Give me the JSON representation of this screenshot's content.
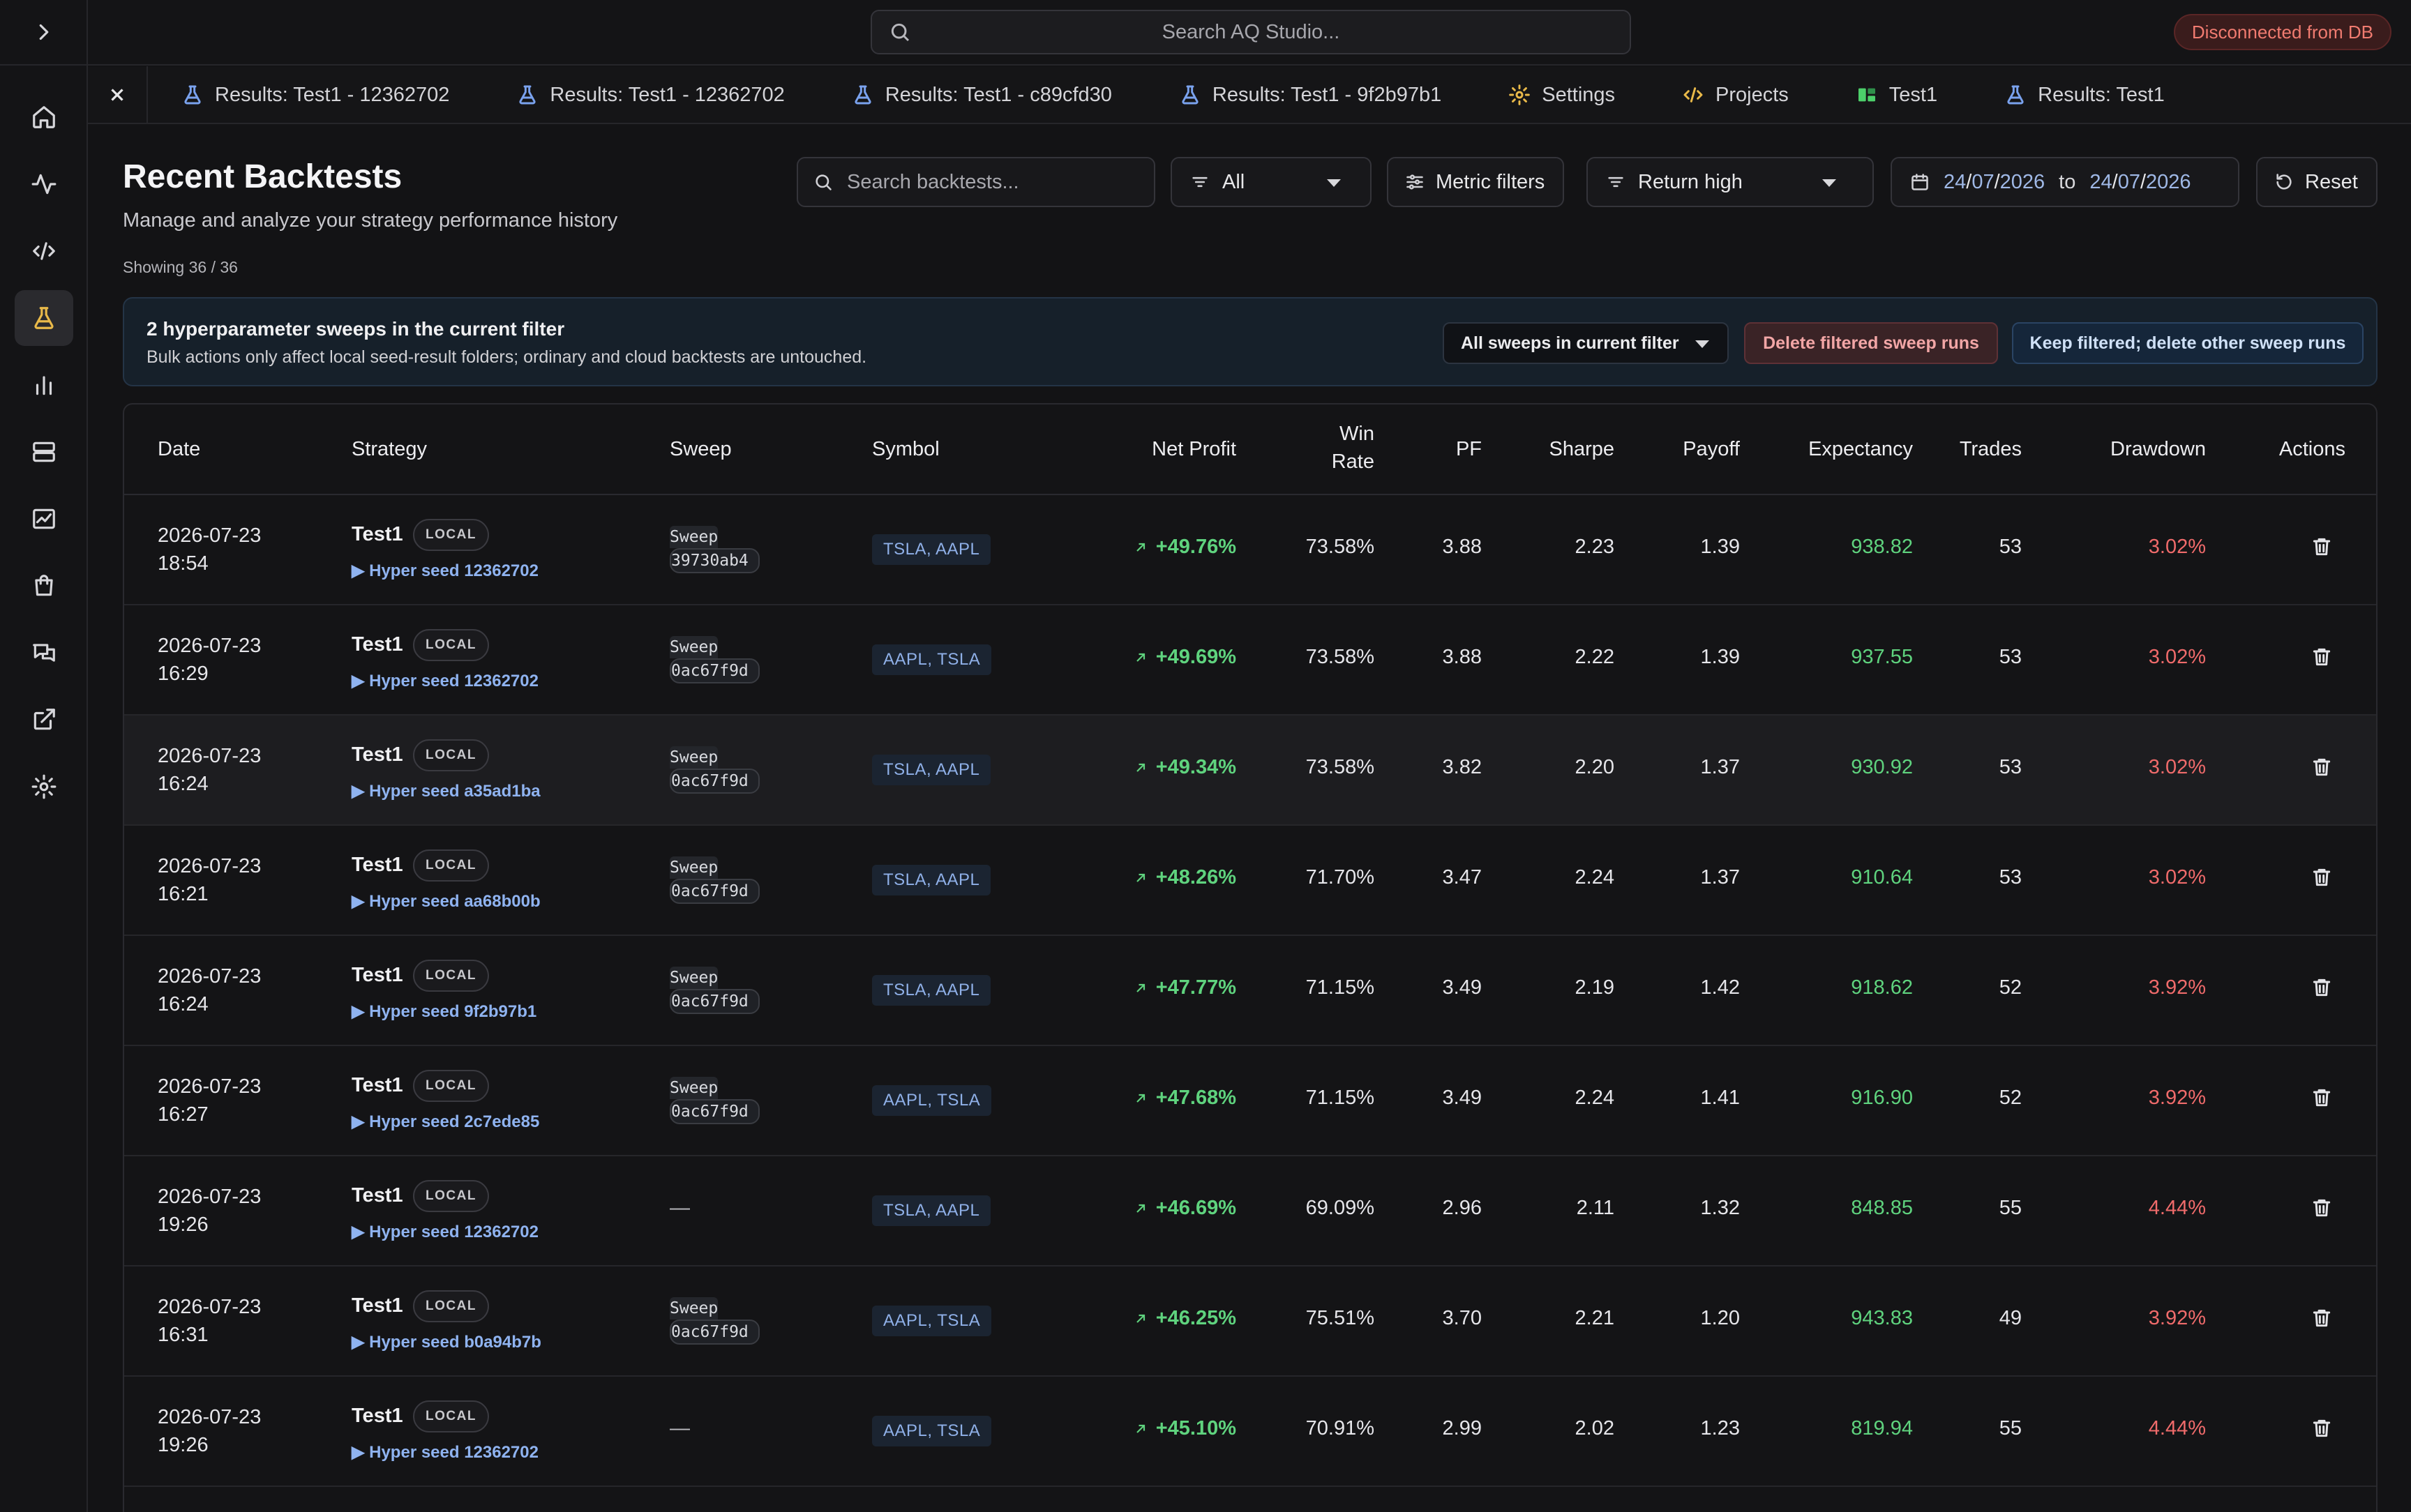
{
  "app": {
    "search_placeholder": "Search AQ Studio...",
    "db_status": "Disconnected from DB",
    "colors": {
      "accent": "#e9b949",
      "positive": "#5fd37e",
      "negative": "#f06b6b",
      "link": "#8fb3f0",
      "status_error": "#f07b70"
    }
  },
  "rail": {
    "icons": [
      "chevron-right-icon",
      "home-icon",
      "activity-icon",
      "code-icon",
      "flask-icon",
      "bar-chart-icon",
      "server-icon",
      "line-chart-icon",
      "shopping-bag-icon",
      "chat-icon",
      "external-link-icon",
      "gear-icon"
    ],
    "active": "flask-icon"
  },
  "tabs": [
    {
      "label": "Results: Test1 - 12362702",
      "icon": "flask-icon"
    },
    {
      "label": "Results: Test1 - 12362702",
      "icon": "flask-icon"
    },
    {
      "label": "Results: Test1 - c89cfd30",
      "icon": "flask-icon"
    },
    {
      "label": "Results: Test1 - 9f2b97b1",
      "icon": "flask-icon"
    },
    {
      "label": "Settings",
      "icon": "gear-icon"
    },
    {
      "label": "Projects",
      "icon": "code-icon"
    },
    {
      "label": "Test1",
      "icon": "strategy-icon"
    },
    {
      "label": "Results: Test1",
      "icon": "flask-icon"
    }
  ],
  "page": {
    "title": "Recent Backtests",
    "subtitle": "Manage and analyze your strategy performance history",
    "showing": "Showing 36 / 36"
  },
  "toolbar": {
    "search_placeholder": "Search backtests...",
    "type_filter": "All",
    "metric_filters": "Metric filters",
    "sort": "Return high",
    "date_from": {
      "dd": "24",
      "mm": "07",
      "yyyy": "2026"
    },
    "date_to": {
      "dd": "24",
      "mm": "07",
      "yyyy": "2026"
    },
    "date_to_word": "to",
    "reset": "Reset"
  },
  "banner": {
    "title": "2 hyperparameter sweeps in the current filter",
    "subtitle": "Bulk actions only affect local seed-result folders; ordinary and cloud backtests are untouched.",
    "scope_select": "All sweeps in current filter",
    "delete_button": "Delete filtered sweep runs",
    "keep_button": "Keep filtered; delete other sweep runs"
  },
  "table": {
    "headers": {
      "date": "Date",
      "strategy": "Strategy",
      "sweep": "Sweep",
      "symbol": "Symbol",
      "net_profit": "Net Profit",
      "win_rate_1": "Win",
      "win_rate_2": "Rate",
      "pf": "PF",
      "sharpe": "Sharpe",
      "payoff": "Payoff",
      "expectancy": "Expectancy",
      "trades": "Trades",
      "drawdown": "Drawdown",
      "actions": "Actions"
    },
    "rows": [
      {
        "date": "2026-07-23",
        "time": "18:54",
        "strategy": "Test1",
        "badge": "LOCAL",
        "seed": "▶ Hyper seed 12362702",
        "sweep_word": "Sweep",
        "sweep_id": "39730ab4",
        "symbol": "TSLA, AAPL",
        "net_profit": "+49.76%",
        "win_rate": "73.58%",
        "pf": "3.88",
        "sharpe": "2.23",
        "payoff": "1.39",
        "expectancy": "938.82",
        "trades": "53",
        "drawdown": "3.02%"
      },
      {
        "date": "2026-07-23",
        "time": "16:29",
        "strategy": "Test1",
        "badge": "LOCAL",
        "seed": "▶ Hyper seed 12362702",
        "sweep_word": "Sweep",
        "sweep_id": "0ac67f9d",
        "symbol": "AAPL, TSLA",
        "net_profit": "+49.69%",
        "win_rate": "73.58%",
        "pf": "3.88",
        "sharpe": "2.22",
        "payoff": "1.39",
        "expectancy": "937.55",
        "trades": "53",
        "drawdown": "3.02%"
      },
      {
        "date": "2026-07-23",
        "time": "16:24",
        "strategy": "Test1",
        "badge": "LOCAL",
        "seed": "▶ Hyper seed a35ad1ba",
        "sweep_word": "Sweep",
        "sweep_id": "0ac67f9d",
        "symbol": "TSLA, AAPL",
        "net_profit": "+49.34%",
        "win_rate": "73.58%",
        "pf": "3.82",
        "sharpe": "2.20",
        "payoff": "1.37",
        "expectancy": "930.92",
        "trades": "53",
        "drawdown": "3.02%"
      },
      {
        "date": "2026-07-23",
        "time": "16:21",
        "strategy": "Test1",
        "badge": "LOCAL",
        "seed": "▶ Hyper seed aa68b00b",
        "sweep_word": "Sweep",
        "sweep_id": "0ac67f9d",
        "symbol": "TSLA, AAPL",
        "net_profit": "+48.26%",
        "win_rate": "71.70%",
        "pf": "3.47",
        "sharpe": "2.24",
        "payoff": "1.37",
        "expectancy": "910.64",
        "trades": "53",
        "drawdown": "3.02%"
      },
      {
        "date": "2026-07-23",
        "time": "16:24",
        "strategy": "Test1",
        "badge": "LOCAL",
        "seed": "▶ Hyper seed 9f2b97b1",
        "sweep_word": "Sweep",
        "sweep_id": "0ac67f9d",
        "symbol": "TSLA, AAPL",
        "net_profit": "+47.77%",
        "win_rate": "71.15%",
        "pf": "3.49",
        "sharpe": "2.19",
        "payoff": "1.42",
        "expectancy": "918.62",
        "trades": "52",
        "drawdown": "3.92%"
      },
      {
        "date": "2026-07-23",
        "time": "16:27",
        "strategy": "Test1",
        "badge": "LOCAL",
        "seed": "▶ Hyper seed 2c7ede85",
        "sweep_word": "Sweep",
        "sweep_id": "0ac67f9d",
        "symbol": "AAPL, TSLA",
        "net_profit": "+47.68%",
        "win_rate": "71.15%",
        "pf": "3.49",
        "sharpe": "2.24",
        "payoff": "1.41",
        "expectancy": "916.90",
        "trades": "52",
        "drawdown": "3.92%"
      },
      {
        "date": "2026-07-23",
        "time": "19:26",
        "strategy": "Test1",
        "badge": "LOCAL",
        "seed": "▶ Hyper seed 12362702",
        "sweep_word": "",
        "sweep_id": "",
        "sweep_none": "—",
        "symbol": "TSLA, AAPL",
        "net_profit": "+46.69%",
        "win_rate": "69.09%",
        "pf": "2.96",
        "sharpe": "2.11",
        "payoff": "1.32",
        "expectancy": "848.85",
        "trades": "55",
        "drawdown": "4.44%"
      },
      {
        "date": "2026-07-23",
        "time": "16:31",
        "strategy": "Test1",
        "badge": "LOCAL",
        "seed": "▶ Hyper seed b0a94b7b",
        "sweep_word": "Sweep",
        "sweep_id": "0ac67f9d",
        "symbol": "AAPL, TSLA",
        "net_profit": "+46.25%",
        "win_rate": "75.51%",
        "pf": "3.70",
        "sharpe": "2.21",
        "payoff": "1.20",
        "expectancy": "943.83",
        "trades": "49",
        "drawdown": "3.92%"
      },
      {
        "date": "2026-07-23",
        "time": "19:26",
        "strategy": "Test1",
        "badge": "LOCAL",
        "seed": "▶ Hyper seed 12362702",
        "sweep_word": "",
        "sweep_id": "",
        "sweep_none": "—",
        "symbol": "AAPL, TSLA",
        "net_profit": "+45.10%",
        "win_rate": "70.91%",
        "pf": "2.99",
        "sharpe": "2.02",
        "payoff": "1.23",
        "expectancy": "819.94",
        "trades": "55",
        "drawdown": "4.44%"
      }
    ]
  }
}
